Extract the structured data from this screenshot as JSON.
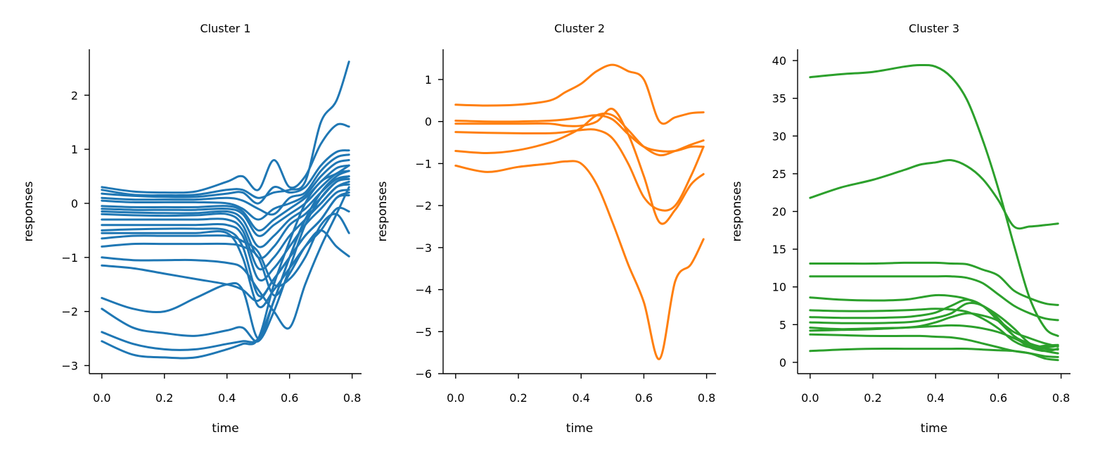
{
  "chart_data": [
    {
      "type": "line",
      "title": "Cluster 1",
      "xlabel": "time",
      "ylabel": "responses",
      "color": "#1f77b4",
      "xlim": [
        -0.04,
        0.83
      ],
      "ylim": [
        -3.15,
        2.85
      ],
      "xticks": [
        0.0,
        0.2,
        0.4,
        0.6,
        0.8
      ],
      "xtick_labels": [
        "0.0",
        "0.2",
        "0.4",
        "0.6",
        "0.8"
      ],
      "yticks": [
        -3,
        -2,
        -1,
        0,
        1,
        2
      ],
      "ytick_labels": [
        "−3",
        "−2",
        "−1",
        "0",
        "1",
        "2"
      ],
      "grid": false,
      "x": [
        0.0,
        0.1,
        0.2,
        0.3,
        0.4,
        0.45,
        0.5,
        0.55,
        0.6,
        0.65,
        0.7,
        0.75,
        0.79
      ],
      "series": [
        {
          "values": [
            0.3,
            0.22,
            0.2,
            0.22,
            0.4,
            0.5,
            0.25,
            0.8,
            0.3,
            0.5,
            1.1,
            1.45,
            1.42
          ]
        },
        {
          "values": [
            0.25,
            0.16,
            0.15,
            0.16,
            0.25,
            0.25,
            0.1,
            0.2,
            0.25,
            0.4,
            1.5,
            1.9,
            2.62
          ]
        },
        {
          "values": [
            0.18,
            0.14,
            0.12,
            0.12,
            0.18,
            0.2,
            0.0,
            0.3,
            0.2,
            0.3,
            0.7,
            0.95,
            0.98
          ]
        },
        {
          "values": [
            0.1,
            0.07,
            0.07,
            0.07,
            0.1,
            0.05,
            -0.1,
            -0.2,
            0.1,
            0.2,
            0.6,
            0.85,
            0.9
          ]
        },
        {
          "values": [
            0.05,
            0.02,
            0.02,
            0.02,
            0.0,
            -0.1,
            -0.3,
            -0.1,
            0.0,
            0.15,
            0.5,
            0.75,
            0.8
          ]
        },
        {
          "values": [
            -0.05,
            -0.07,
            -0.07,
            -0.07,
            -0.05,
            -0.15,
            -0.5,
            -0.3,
            -0.1,
            0.1,
            0.4,
            0.65,
            0.7
          ]
        },
        {
          "values": [
            -0.1,
            -0.12,
            -0.12,
            -0.12,
            -0.1,
            -0.2,
            -0.6,
            -0.4,
            -0.2,
            0.0,
            0.3,
            0.55,
            0.6
          ]
        },
        {
          "values": [
            -0.15,
            -0.17,
            -0.18,
            -0.18,
            -0.15,
            -0.3,
            -0.8,
            -0.6,
            -0.3,
            -0.1,
            0.2,
            0.45,
            0.5
          ]
        },
        {
          "values": [
            -0.2,
            -0.22,
            -0.23,
            -0.22,
            -0.2,
            -0.4,
            -1.0,
            -0.8,
            -0.4,
            -0.2,
            0.1,
            0.4,
            0.45
          ]
        },
        {
          "values": [
            -0.3,
            -0.3,
            -0.3,
            -0.3,
            -0.3,
            -0.5,
            -1.2,
            -1.0,
            -0.6,
            -0.3,
            0.0,
            0.3,
            0.35
          ]
        },
        {
          "values": [
            -0.4,
            -0.4,
            -0.4,
            -0.4,
            -0.4,
            -0.6,
            -1.4,
            -1.2,
            -0.8,
            -0.4,
            -0.1,
            0.2,
            0.25
          ]
        },
        {
          "values": [
            -0.5,
            -0.48,
            -0.47,
            -0.47,
            -0.5,
            -0.8,
            -1.7,
            -1.4,
            -1.0,
            -0.6,
            -0.3,
            0.1,
            0.15
          ]
        },
        {
          "values": [
            -0.55,
            -0.55,
            -0.55,
            -0.55,
            -0.55,
            -1.0,
            -1.9,
            -1.6,
            -1.2,
            -0.8,
            -0.5,
            -0.1,
            -0.15
          ]
        },
        {
          "values": [
            -0.65,
            -0.6,
            -0.6,
            -0.6,
            -0.6,
            -0.7,
            -0.9,
            -1.5,
            -1.4,
            -1.0,
            -0.4,
            -0.2,
            -0.55
          ]
        },
        {
          "values": [
            -0.8,
            -0.75,
            -0.75,
            -0.75,
            -0.75,
            -0.8,
            -1.0,
            -1.7,
            -1.3,
            -0.8,
            -0.5,
            -0.8,
            -0.98
          ]
        },
        {
          "values": [
            -1.0,
            -1.05,
            -1.05,
            -1.05,
            -1.1,
            -1.2,
            -1.6,
            -2.0,
            -2.3,
            -1.5,
            -0.8,
            -0.2,
            0.3
          ]
        },
        {
          "values": [
            -1.15,
            -1.2,
            -1.3,
            -1.4,
            -1.5,
            -1.6,
            -1.8,
            -1.4,
            -1.0,
            -0.6,
            -0.3,
            0.1,
            0.2
          ]
        },
        {
          "values": [
            -1.75,
            -1.95,
            -2.0,
            -1.75,
            -1.5,
            -1.6,
            -2.5,
            -1.8,
            -1.0,
            -0.3,
            0.0,
            0.3,
            0.4
          ]
        },
        {
          "values": [
            -1.95,
            -2.3,
            -2.4,
            -2.45,
            -2.35,
            -2.3,
            -2.55,
            -2.0,
            -1.2,
            -0.4,
            0.1,
            0.4,
            0.5
          ]
        },
        {
          "values": [
            -2.38,
            -2.6,
            -2.7,
            -2.7,
            -2.6,
            -2.55,
            -2.5,
            -1.8,
            -1.0,
            -0.3,
            0.2,
            0.5,
            0.6
          ]
        },
        {
          "values": [
            -2.55,
            -2.8,
            -2.85,
            -2.85,
            -2.7,
            -2.6,
            -2.5,
            -1.5,
            -0.7,
            0.0,
            0.4,
            0.55,
            0.7
          ]
        }
      ]
    },
    {
      "type": "line",
      "title": "Cluster 2",
      "xlabel": "time",
      "ylabel": "responses",
      "color": "#ff7f0e",
      "xlim": [
        -0.04,
        0.83
      ],
      "ylim": [
        -6.0,
        1.72
      ],
      "xticks": [
        0.0,
        0.2,
        0.4,
        0.6,
        0.8
      ],
      "xtick_labels": [
        "0.0",
        "0.2",
        "0.4",
        "0.6",
        "0.8"
      ],
      "yticks": [
        -6,
        -5,
        -4,
        -3,
        -2,
        -1,
        0,
        1
      ],
      "ytick_labels": [
        "−6",
        "−5",
        "−4",
        "−3",
        "−2",
        "−1",
        "0",
        "1"
      ],
      "grid": false,
      "x": [
        0.0,
        0.1,
        0.2,
        0.3,
        0.35,
        0.4,
        0.45,
        0.5,
        0.55,
        0.6,
        0.65,
        0.7,
        0.75,
        0.79
      ],
      "series": [
        {
          "values": [
            0.4,
            0.38,
            0.4,
            0.5,
            0.7,
            0.9,
            1.2,
            1.35,
            1.2,
            1.0,
            0.0,
            0.1,
            0.2,
            0.22
          ]
        },
        {
          "values": [
            0.02,
            0.0,
            0.0,
            0.02,
            0.05,
            0.1,
            0.15,
            0.05,
            -0.3,
            -0.6,
            -0.7,
            -0.7,
            -0.6,
            -0.6
          ]
        },
        {
          "values": [
            -0.05,
            -0.05,
            -0.05,
            -0.05,
            -0.1,
            -0.1,
            0.0,
            0.3,
            -0.3,
            -1.3,
            -2.4,
            -2.1,
            -1.5,
            -1.25
          ]
        },
        {
          "values": [
            -0.25,
            -0.27,
            -0.28,
            -0.28,
            -0.25,
            -0.2,
            -0.2,
            -0.4,
            -1.0,
            -1.8,
            -2.1,
            -2.0,
            -1.3,
            -0.6
          ]
        },
        {
          "values": [
            -0.7,
            -0.75,
            -0.68,
            -0.5,
            -0.35,
            -0.15,
            0.15,
            0.15,
            -0.2,
            -0.6,
            -0.8,
            -0.7,
            -0.55,
            -0.45
          ]
        },
        {
          "values": [
            -1.05,
            -1.2,
            -1.08,
            -1.0,
            -0.95,
            -1.0,
            -1.5,
            -2.4,
            -3.4,
            -4.3,
            -5.65,
            -3.8,
            -3.4,
            -2.8
          ]
        }
      ]
    },
    {
      "type": "line",
      "title": "Cluster 3",
      "xlabel": "time",
      "ylabel": "responses",
      "color": "#2ca02c",
      "xlim": [
        -0.04,
        0.83
      ],
      "ylim": [
        -1.5,
        41.5
      ],
      "xticks": [
        0.0,
        0.2,
        0.4,
        0.6,
        0.8
      ],
      "xtick_labels": [
        "0.0",
        "0.2",
        "0.4",
        "0.6",
        "0.8"
      ],
      "yticks": [
        0,
        5,
        10,
        15,
        20,
        25,
        30,
        35,
        40
      ],
      "ytick_labels": [
        "0",
        "5",
        "10",
        "15",
        "20",
        "25",
        "30",
        "35",
        "40"
      ],
      "grid": false,
      "x": [
        0.0,
        0.1,
        0.2,
        0.3,
        0.35,
        0.4,
        0.45,
        0.5,
        0.55,
        0.6,
        0.65,
        0.7,
        0.75,
        0.79
      ],
      "series": [
        {
          "values": [
            37.8,
            38.2,
            38.5,
            39.2,
            39.4,
            39.2,
            37.8,
            34.8,
            29.5,
            23.0,
            15.5,
            8.5,
            4.5,
            3.5
          ]
        },
        {
          "values": [
            21.8,
            23.2,
            24.2,
            25.5,
            26.2,
            26.5,
            26.8,
            26.0,
            24.3,
            21.5,
            18.0,
            18.0,
            18.2,
            18.4
          ]
        },
        {
          "values": [
            13.1,
            13.1,
            13.1,
            13.2,
            13.2,
            13.2,
            13.1,
            13.0,
            12.3,
            11.5,
            9.5,
            8.5,
            7.8,
            7.6
          ]
        },
        {
          "values": [
            11.4,
            11.4,
            11.4,
            11.4,
            11.4,
            11.4,
            11.4,
            11.2,
            10.5,
            9.0,
            7.5,
            6.5,
            5.8,
            5.6
          ]
        },
        {
          "values": [
            8.6,
            8.3,
            8.2,
            8.3,
            8.6,
            8.9,
            8.8,
            8.4,
            7.5,
            6.2,
            4.5,
            2.5,
            1.8,
            1.7
          ]
        },
        {
          "values": [
            6.9,
            6.8,
            6.8,
            6.9,
            7.0,
            7.1,
            7.0,
            6.7,
            5.8,
            4.5,
            2.8,
            2.0,
            2.2,
            2.3
          ]
        },
        {
          "values": [
            6.0,
            5.9,
            5.9,
            6.0,
            6.2,
            6.6,
            7.5,
            8.3,
            7.5,
            5.5,
            3.5,
            2.0,
            1.5,
            1.8
          ]
        },
        {
          "values": [
            5.3,
            5.2,
            5.2,
            5.3,
            5.5,
            5.9,
            6.5,
            7.8,
            7.5,
            5.8,
            3.5,
            2.5,
            2.0,
            2.2
          ]
        },
        {
          "values": [
            4.6,
            4.4,
            4.5,
            4.6,
            4.8,
            5.3,
            6.0,
            6.5,
            6.2,
            5.5,
            4.0,
            3.2,
            2.5,
            2.1
          ]
        },
        {
          "values": [
            4.2,
            4.3,
            4.4,
            4.6,
            4.7,
            4.8,
            4.9,
            4.8,
            4.5,
            4.0,
            3.2,
            2.2,
            1.5,
            1.2
          ]
        },
        {
          "values": [
            3.7,
            3.6,
            3.5,
            3.5,
            3.5,
            3.4,
            3.3,
            3.0,
            2.5,
            2.0,
            1.5,
            1.2,
            0.8,
            0.7
          ]
        },
        {
          "values": [
            1.5,
            1.7,
            1.8,
            1.8,
            1.8,
            1.8,
            1.8,
            1.8,
            1.7,
            1.6,
            1.5,
            1.2,
            0.5,
            0.3
          ]
        }
      ]
    }
  ]
}
